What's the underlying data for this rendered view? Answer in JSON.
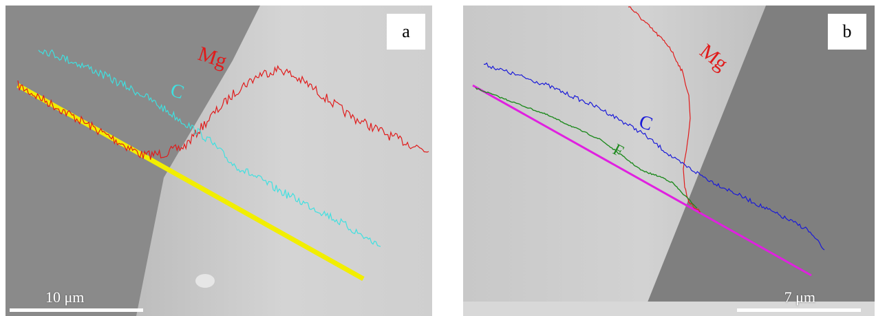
{
  "panels": [
    {
      "label": "a",
      "scale_bar": "10 μm",
      "elements": [
        {
          "symbol": "Mg",
          "color": "#e01b1b"
        },
        {
          "symbol": "C",
          "color": "#3fe0e0"
        }
      ],
      "line_color": "#f2ee00"
    },
    {
      "label": "b",
      "scale_bar": "7 μm",
      "elements": [
        {
          "symbol": "Mg",
          "color": "#e01b1b"
        },
        {
          "symbol": "C",
          "color": "#1a1ad8"
        },
        {
          "symbol": "F",
          "color": "#1f8a1f"
        }
      ],
      "line_color": "#e020e0"
    }
  ]
}
